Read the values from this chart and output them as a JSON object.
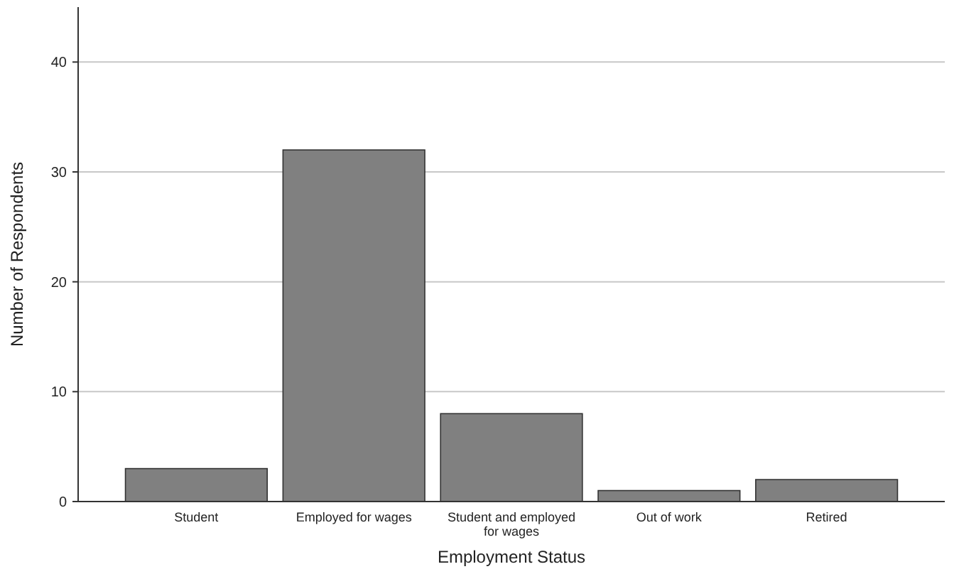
{
  "chart_data": {
    "type": "bar",
    "xlabel": "Employment Status",
    "ylabel": "Number of Respondents",
    "categories": [
      "Student",
      "Employed for wages",
      "Student and employed for wages",
      "Out of work",
      "Retired"
    ],
    "values": [
      3,
      32,
      8,
      1,
      2
    ],
    "color": "#808080",
    "ylim": [
      0,
      45
    ],
    "yticks": [
      0,
      10,
      20,
      30,
      40
    ],
    "grid": "y"
  }
}
